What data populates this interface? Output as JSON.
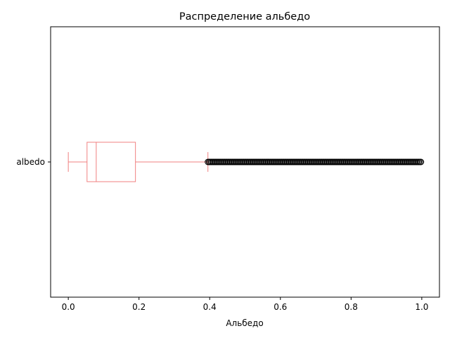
{
  "chart_data": {
    "type": "boxplot",
    "orientation": "horizontal",
    "title": "Распределение альбедо",
    "xlabel": "Альбедо",
    "ylabel": "",
    "xlim": [
      -0.05,
      1.05
    ],
    "xticks": [
      0.0,
      0.2,
      0.4,
      0.6,
      0.8,
      1.0
    ],
    "xtick_labels": [
      "0.0",
      "0.2",
      "0.4",
      "0.6",
      "0.8",
      "1.0"
    ],
    "categories": [
      "albedo"
    ],
    "grid": false,
    "box_color": "#f08080",
    "outlier_color": "#000000",
    "boxes": [
      {
        "name": "albedo",
        "whisker_low": 0.0,
        "q1": 0.053,
        "median": 0.079,
        "q3": 0.19,
        "whisker_high": 0.395,
        "outliers_range": [
          0.395,
          1.0
        ]
      }
    ]
  }
}
